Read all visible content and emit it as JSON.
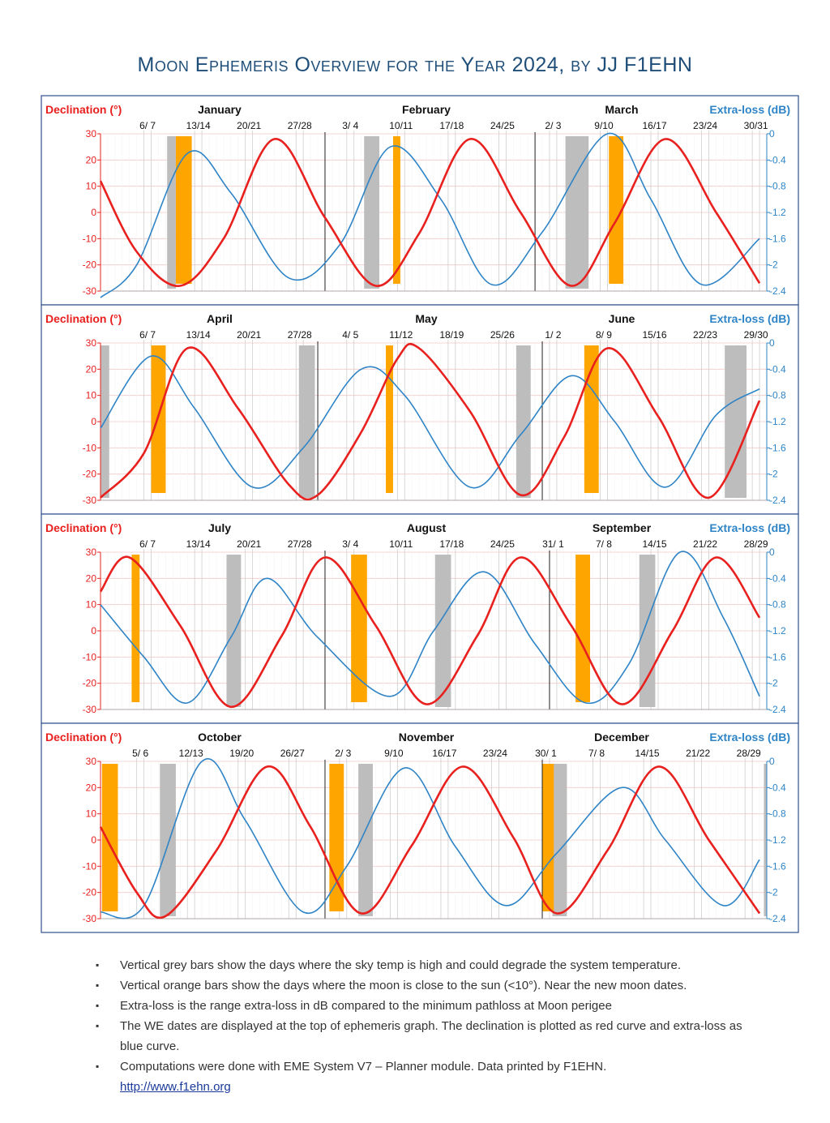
{
  "title": "Moon Ephemeris Overview for the Year 2024, by JJ F1EHN",
  "colors": {
    "declination": "#e8201e",
    "extra_loss": "#2e84c6",
    "grey_bar": "#bdbdbd",
    "orange_bar": "#ffa500",
    "title": "#1f4e79",
    "frame": "#2f4f8f"
  },
  "chart_data": [
    {
      "type": "line",
      "months": [
        "January",
        "February",
        "March"
      ],
      "left_label": "Declination (°)",
      "right_label": "Extra-loss (dB)",
      "y_ticks": [
        "30",
        "20",
        "10",
        "0",
        "-10",
        "-20",
        "-30"
      ],
      "y2_ticks": [
        "0",
        "-0.4",
        "-0.8",
        "-1.2",
        "-1.6",
        "-2",
        "-2.4"
      ],
      "ylim": [
        -30,
        30
      ],
      "y2lim": [
        -2.4,
        0
      ],
      "week_labels": [
        {
          "day": 6.5,
          "text": "6/ 7"
        },
        {
          "day": 13.5,
          "text": "13/14"
        },
        {
          "day": 20.5,
          "text": "20/21"
        },
        {
          "day": 27.5,
          "text": "27/28"
        },
        {
          "day": 34.5,
          "text": "3/ 4"
        },
        {
          "day": 41.5,
          "text": "10/11"
        },
        {
          "day": 48.5,
          "text": "17/18"
        },
        {
          "day": 55.5,
          "text": "24/25"
        },
        {
          "day": 62.5,
          "text": "2/ 3"
        },
        {
          "day": 69.5,
          "text": "9/10"
        },
        {
          "day": 76.5,
          "text": "16/17"
        },
        {
          "day": 83.5,
          "text": "23/24"
        },
        {
          "day": 90.5,
          "text": "30/31"
        }
      ],
      "month_bounds": [
        31,
        60
      ],
      "grey_bars": [
        [
          9.2,
          10.4
        ],
        [
          36.4,
          38.5
        ],
        [
          64.2,
          67.4
        ]
      ],
      "orange_bars": [
        [
          10.4,
          12.6
        ],
        [
          40.4,
          41.4
        ],
        [
          70.2,
          72.2
        ]
      ],
      "declination": [
        {
          "day": 0,
          "value": 12
        },
        {
          "day": 5,
          "value": -15
        },
        {
          "day": 11,
          "value": -28
        },
        {
          "day": 17,
          "value": -10
        },
        {
          "day": 24,
          "value": 28
        },
        {
          "day": 31,
          "value": -2
        },
        {
          "day": 38,
          "value": -28
        },
        {
          "day": 44,
          "value": -8
        },
        {
          "day": 51,
          "value": 28
        },
        {
          "day": 58,
          "value": 0
        },
        {
          "day": 65,
          "value": -28
        },
        {
          "day": 71,
          "value": -4
        },
        {
          "day": 78,
          "value": 28
        },
        {
          "day": 85,
          "value": 0
        },
        {
          "day": 91,
          "value": -27
        }
      ],
      "extra_loss": [
        {
          "day": 0,
          "value": -2.5
        },
        {
          "day": 5,
          "value": -2.0
        },
        {
          "day": 12,
          "value": -0.3
        },
        {
          "day": 18,
          "value": -0.9
        },
        {
          "day": 26,
          "value": -2.2
        },
        {
          "day": 33,
          "value": -1.7
        },
        {
          "day": 40,
          "value": -0.2
        },
        {
          "day": 47,
          "value": -1.0
        },
        {
          "day": 54,
          "value": -2.3
        },
        {
          "day": 61,
          "value": -1.5
        },
        {
          "day": 70,
          "value": 0
        },
        {
          "day": 76,
          "value": -1.0
        },
        {
          "day": 83,
          "value": -2.3
        },
        {
          "day": 91,
          "value": -1.6
        }
      ]
    },
    {
      "type": "line",
      "months": [
        "April",
        "May",
        "June"
      ],
      "left_label": "Declination (°)",
      "right_label": "Extra-loss (dB)",
      "y_ticks": [
        "30",
        "20",
        "10",
        "0",
        "-10",
        "-20",
        "-30"
      ],
      "y2_ticks": [
        "0",
        "-0.4",
        "-0.8",
        "-1.2",
        "-1.6",
        "-2",
        "-2.4"
      ],
      "ylim": [
        -30,
        30
      ],
      "y2lim": [
        -2.4,
        0
      ],
      "week_labels": [
        {
          "day": 6.5,
          "text": "6/ 7"
        },
        {
          "day": 13.5,
          "text": "13/14"
        },
        {
          "day": 20.5,
          "text": "20/21"
        },
        {
          "day": 27.5,
          "text": "27/28"
        },
        {
          "day": 34.5,
          "text": "4/ 5"
        },
        {
          "day": 41.5,
          "text": "11/12"
        },
        {
          "day": 48.5,
          "text": "18/19"
        },
        {
          "day": 55.5,
          "text": "25/26"
        },
        {
          "day": 62.5,
          "text": "1/ 2"
        },
        {
          "day": 69.5,
          "text": "8/ 9"
        },
        {
          "day": 76.5,
          "text": "15/16"
        },
        {
          "day": 83.5,
          "text": "22/23"
        },
        {
          "day": 90.5,
          "text": "29/30"
        }
      ],
      "month_bounds": [
        30,
        61
      ],
      "grey_bars": [
        [
          0,
          1.2
        ],
        [
          27.4,
          29.6
        ],
        [
          57.4,
          59.4
        ],
        [
          86.2,
          89.2
        ]
      ],
      "orange_bars": [
        [
          7,
          9
        ],
        [
          39.4,
          40.4
        ],
        [
          66.8,
          68.8
        ]
      ],
      "declination": [
        {
          "day": 0,
          "value": -29
        },
        {
          "day": 6,
          "value": -12
        },
        {
          "day": 12,
          "value": 28
        },
        {
          "day": 19,
          "value": 5
        },
        {
          "day": 26,
          "value": -24
        },
        {
          "day": 30,
          "value": -28
        },
        {
          "day": 36,
          "value": -4
        },
        {
          "day": 41,
          "value": 24
        },
        {
          "day": 44,
          "value": 28
        },
        {
          "day": 51,
          "value": 4
        },
        {
          "day": 58,
          "value": -28
        },
        {
          "day": 64,
          "value": -6
        },
        {
          "day": 70,
          "value": 28
        },
        {
          "day": 77,
          "value": 2
        },
        {
          "day": 84,
          "value": -29
        },
        {
          "day": 91,
          "value": 8
        }
      ],
      "extra_loss": [
        {
          "day": 0,
          "value": -1.3
        },
        {
          "day": 7,
          "value": -0.2
        },
        {
          "day": 13,
          "value": -1.0
        },
        {
          "day": 21,
          "value": -2.2
        },
        {
          "day": 28,
          "value": -1.6
        },
        {
          "day": 36,
          "value": -0.4
        },
        {
          "day": 42,
          "value": -0.8
        },
        {
          "day": 51,
          "value": -2.2
        },
        {
          "day": 58,
          "value": -1.4
        },
        {
          "day": 65,
          "value": -0.5
        },
        {
          "day": 71,
          "value": -1.2
        },
        {
          "day": 78,
          "value": -2.2
        },
        {
          "day": 85,
          "value": -1.1
        },
        {
          "day": 91,
          "value": -0.7
        }
      ]
    },
    {
      "type": "line",
      "months": [
        "July",
        "August",
        "September"
      ],
      "left_label": "Declination (°)",
      "right_label": "Extra-loss (dB)",
      "y_ticks": [
        "30",
        "20",
        "10",
        "0",
        "-10",
        "-20",
        "-30"
      ],
      "y2_ticks": [
        "0",
        "-0.4",
        "-0.8",
        "-1.2",
        "-1.6",
        "-2",
        "-2.4"
      ],
      "ylim": [
        -30,
        30
      ],
      "y2lim": [
        -2.4,
        0
      ],
      "week_labels": [
        {
          "day": 6.5,
          "text": "6/ 7"
        },
        {
          "day": 13.5,
          "text": "13/14"
        },
        {
          "day": 20.5,
          "text": "20/21"
        },
        {
          "day": 27.5,
          "text": "27/28"
        },
        {
          "day": 34.5,
          "text": "3/ 4"
        },
        {
          "day": 41.5,
          "text": "10/11"
        },
        {
          "day": 48.5,
          "text": "17/18"
        },
        {
          "day": 55.5,
          "text": "24/25"
        },
        {
          "day": 62.5,
          "text": "31/ 1"
        },
        {
          "day": 69.5,
          "text": "7/ 8"
        },
        {
          "day": 76.5,
          "text": "14/15"
        },
        {
          "day": 83.5,
          "text": "21/22"
        },
        {
          "day": 90.5,
          "text": "28/29"
        }
      ],
      "month_bounds": [
        31,
        62
      ],
      "grey_bars": [
        [
          17.4,
          19.4
        ],
        [
          46.2,
          48.4
        ],
        [
          74.4,
          76.6
        ]
      ],
      "orange_bars": [
        [
          4.3,
          5.4
        ],
        [
          34.6,
          36.8
        ],
        [
          65.6,
          67.6
        ]
      ],
      "declination": [
        {
          "day": 0,
          "value": 15
        },
        {
          "day": 4,
          "value": 28
        },
        {
          "day": 11,
          "value": 2
        },
        {
          "day": 18,
          "value": -29
        },
        {
          "day": 25,
          "value": -2
        },
        {
          "day": 31,
          "value": 28
        },
        {
          "day": 38,
          "value": 2
        },
        {
          "day": 45,
          "value": -28
        },
        {
          "day": 52,
          "value": -2
        },
        {
          "day": 58,
          "value": 28
        },
        {
          "day": 65,
          "value": 2
        },
        {
          "day": 72,
          "value": -28
        },
        {
          "day": 79,
          "value": 0
        },
        {
          "day": 85,
          "value": 28
        },
        {
          "day": 91,
          "value": 5
        }
      ],
      "extra_loss": [
        {
          "day": 0,
          "value": -0.8
        },
        {
          "day": 6,
          "value": -1.6
        },
        {
          "day": 12,
          "value": -2.3
        },
        {
          "day": 18,
          "value": -1.3
        },
        {
          "day": 23,
          "value": -0.4
        },
        {
          "day": 30,
          "value": -1.3
        },
        {
          "day": 40,
          "value": -2.2
        },
        {
          "day": 46,
          "value": -1.2
        },
        {
          "day": 53,
          "value": -0.3
        },
        {
          "day": 60,
          "value": -1.4
        },
        {
          "day": 67,
          "value": -2.3
        },
        {
          "day": 73,
          "value": -1.7
        },
        {
          "day": 80,
          "value": 0
        },
        {
          "day": 86,
          "value": -1.0
        },
        {
          "day": 91,
          "value": -2.2
        }
      ]
    },
    {
      "type": "line",
      "months": [
        "October",
        "November",
        "December"
      ],
      "left_label": "Declination (°)",
      "right_label": "Extra-loss (dB)",
      "y_ticks": [
        "30",
        "20",
        "10",
        "0",
        "-10",
        "-20",
        "-30"
      ],
      "y2_ticks": [
        "0",
        "-0.4",
        "-0.8",
        "-1.2",
        "-1.6",
        "-2",
        "-2.4"
      ],
      "ylim": [
        -30,
        30
      ],
      "y2lim": [
        -2.4,
        0
      ],
      "week_labels": [
        {
          "day": 5.5,
          "text": "5/ 6"
        },
        {
          "day": 12.5,
          "text": "12/13"
        },
        {
          "day": 19.5,
          "text": "19/20"
        },
        {
          "day": 26.5,
          "text": "26/27"
        },
        {
          "day": 33.5,
          "text": "2/ 3"
        },
        {
          "day": 40.5,
          "text": "9/10"
        },
        {
          "day": 47.5,
          "text": "16/17"
        },
        {
          "day": 54.5,
          "text": "23/24"
        },
        {
          "day": 61.5,
          "text": "30/ 1"
        },
        {
          "day": 68.5,
          "text": "7/ 8"
        },
        {
          "day": 75.5,
          "text": "14/15"
        },
        {
          "day": 82.5,
          "text": "21/22"
        },
        {
          "day": 89.5,
          "text": "28/29"
        }
      ],
      "month_bounds": [
        31,
        61
      ],
      "grey_bars": [
        [
          8.2,
          10.4
        ],
        [
          35.6,
          37.6
        ],
        [
          62.4,
          64.4
        ],
        [
          91.6,
          92
        ]
      ],
      "orange_bars": [
        [
          0.2,
          2.4
        ],
        [
          31.6,
          33.6
        ],
        [
          61,
          62.6
        ]
      ],
      "declination": [
        {
          "day": 0,
          "value": 5
        },
        {
          "day": 5,
          "value": -20
        },
        {
          "day": 9,
          "value": -29
        },
        {
          "day": 16,
          "value": -4
        },
        {
          "day": 23,
          "value": 28
        },
        {
          "day": 29,
          "value": 5
        },
        {
          "day": 36,
          "value": -28
        },
        {
          "day": 43,
          "value": -2
        },
        {
          "day": 50,
          "value": 28
        },
        {
          "day": 57,
          "value": 1
        },
        {
          "day": 63,
          "value": -28
        },
        {
          "day": 70,
          "value": -4
        },
        {
          "day": 77,
          "value": 28
        },
        {
          "day": 84,
          "value": 0
        },
        {
          "day": 91,
          "value": -28
        }
      ],
      "extra_loss": [
        {
          "day": 0,
          "value": -2.3
        },
        {
          "day": 6,
          "value": -2.2
        },
        {
          "day": 14,
          "value": 0
        },
        {
          "day": 20,
          "value": -0.9
        },
        {
          "day": 28,
          "value": -2.3
        },
        {
          "day": 34,
          "value": -1.6
        },
        {
          "day": 42,
          "value": -0.1
        },
        {
          "day": 49,
          "value": -1.3
        },
        {
          "day": 56,
          "value": -2.2
        },
        {
          "day": 63,
          "value": -1.4
        },
        {
          "day": 72,
          "value": -0.4
        },
        {
          "day": 78,
          "value": -1.2
        },
        {
          "day": 86,
          "value": -2.2
        },
        {
          "day": 91,
          "value": -1.5
        }
      ]
    }
  ],
  "notes": [
    "Vertical grey bars show the days where the sky temp is high and could degrade the system temperature.",
    "Vertical orange bars show the days where the moon is close to the sun (<10°). Near the new moon dates.",
    "Extra-loss is the range extra-loss in dB compared to the minimum pathloss at Moon perigee",
    "The WE dates are displayed at the top of ephemeris graph. The declination is plotted as red curve and extra-loss as blue curve.",
    "Computations were done with EME System V7 – Planner module. Data printed by F1EHN."
  ],
  "bullet": "▪",
  "link": "http://www.f1ehn.org"
}
